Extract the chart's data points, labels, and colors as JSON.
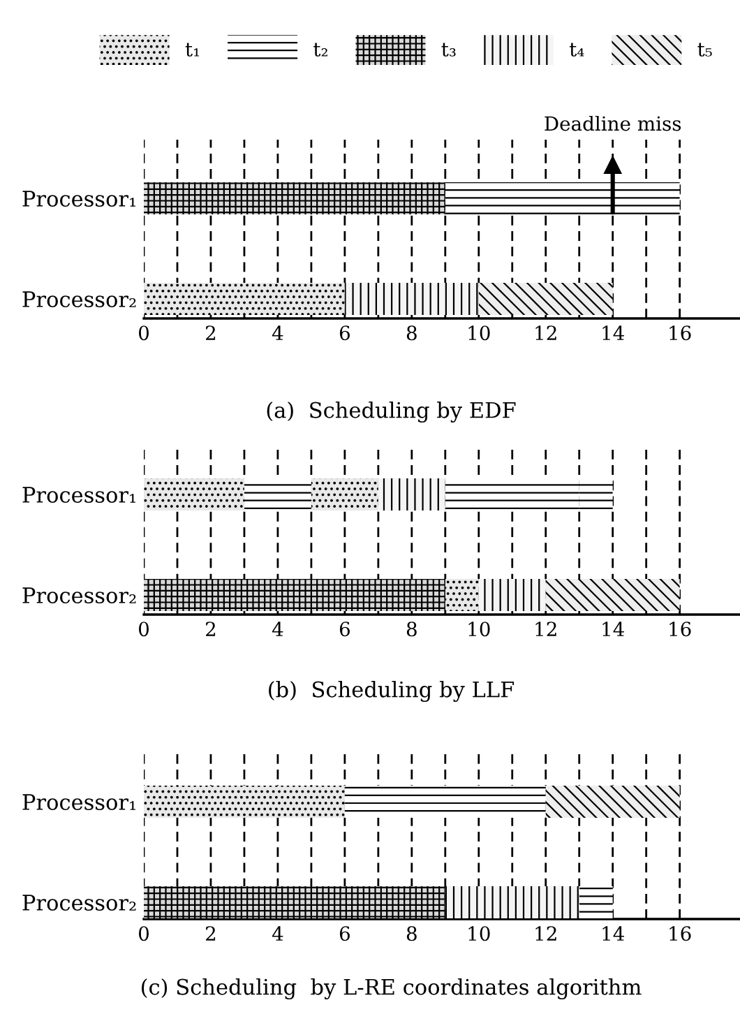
{
  "chart_data": [
    {
      "type": "bar",
      "orientation": "horizontal",
      "title": "(a)  Scheduling by EDF",
      "categories": [
        "Processor₁",
        "Processor₂"
      ],
      "xlim": [
        0,
        17.8
      ],
      "xticks": [
        0,
        {
          "value": 1,
          "label": null
        },
        2,
        {
          "value": 3,
          "label": null
        },
        4,
        {
          "value": 5,
          "label": null
        },
        6,
        {
          "value": 7,
          "label": null
        },
        8,
        {
          "value": 9,
          "label": null
        },
        10,
        {
          "value": 11,
          "label": null
        },
        12,
        {
          "value": 13,
          "label": null
        },
        14,
        {
          "value": 15,
          "label": null
        },
        16
      ],
      "grid": "x",
      "legend": "top",
      "series": [
        {
          "name": "t₁",
          "color": "#e8e8e8",
          "values": [
            null,
            6
          ],
          "base": [
            null,
            0
          ]
        },
        {
          "name": "t₂",
          "color": "#ffffff",
          "values": [
            7,
            null
          ],
          "base": [
            9,
            null
          ]
        },
        {
          "name": "t₃",
          "color": "#d8d8d8",
          "values": [
            9,
            null
          ],
          "base": [
            0,
            null
          ]
        },
        {
          "name": "t₄",
          "color": "#f4f4f4",
          "values": [
            null,
            4
          ],
          "base": [
            null,
            6
          ]
        },
        {
          "name": "t₅",
          "color": "#eeeeee",
          "values": [
            null,
            4
          ],
          "base": [
            null,
            10
          ]
        }
      ],
      "ref_lines": [
        {
          "axis": "x",
          "value": 14,
          "label": "Deadline miss"
        }
      ]
    },
    {
      "type": "bar",
      "orientation": "horizontal",
      "title": "(b)  Scheduling by LLF",
      "categories": [
        "Processor₁",
        "Processor₂"
      ],
      "xlim": [
        0,
        17.8
      ],
      "xticks": [
        0,
        {
          "value": 1,
          "label": null
        },
        2,
        {
          "value": 3,
          "label": null
        },
        4,
        {
          "value": 5,
          "label": null
        },
        6,
        {
          "value": 7,
          "label": null
        },
        8,
        {
          "value": 9,
          "label": null
        },
        10,
        {
          "value": 11,
          "label": null
        },
        12,
        {
          "value": 13,
          "label": null
        },
        14,
        {
          "value": 15,
          "label": null
        },
        16
      ],
      "grid": "x",
      "series": [
        {
          "color": "#e8e8e8",
          "values": [
            3,
            1
          ],
          "base": [
            0,
            9
          ]
        },
        {
          "color": "#e8e8e8",
          "values": [
            2,
            null
          ],
          "base": [
            5,
            null
          ]
        },
        {
          "color": "#ffffff",
          "values": [
            2,
            null
          ],
          "base": [
            3,
            null
          ]
        },
        {
          "color": "#ffffff",
          "values": [
            4,
            null
          ],
          "base": [
            9,
            null
          ]
        },
        {
          "color": "#ffffff",
          "values": [
            1,
            null
          ],
          "base": [
            13,
            null
          ]
        },
        {
          "color": "#d8d8d8",
          "values": [
            null,
            9
          ],
          "base": [
            null,
            0
          ]
        },
        {
          "color": "#f4f4f4",
          "values": [
            2,
            2
          ],
          "base": [
            7,
            10
          ]
        },
        {
          "color": "#eeeeee",
          "values": [
            null,
            4
          ],
          "base": [
            null,
            12
          ]
        }
      ]
    },
    {
      "type": "bar",
      "orientation": "horizontal",
      "title": "(c) Scheduling  by L-RE coordinates algorithm",
      "categories": [
        "Processor₁",
        "Processor₂"
      ],
      "xlim": [
        0,
        17.8
      ],
      "xticks": [
        0,
        {
          "value": 1,
          "label": null
        },
        2,
        {
          "value": 3,
          "label": null
        },
        4,
        {
          "value": 5,
          "label": null
        },
        6,
        {
          "value": 7,
          "label": null
        },
        8,
        {
          "value": 9,
          "label": null
        },
        10,
        {
          "value": 11,
          "label": null
        },
        12,
        {
          "value": 13,
          "label": null
        },
        14,
        {
          "value": 15,
          "label": null
        },
        16
      ],
      "grid": "x",
      "series": [
        {
          "color": "#e8e8e8",
          "values": [
            6,
            null
          ],
          "base": [
            0,
            null
          ]
        },
        {
          "color": "#ffffff",
          "values": [
            6,
            1
          ],
          "base": [
            6,
            13
          ]
        },
        {
          "color": "#d8d8d8",
          "values": [
            null,
            9
          ],
          "base": [
            null,
            0
          ]
        },
        {
          "color": "#f4f4f4",
          "values": [
            null,
            4
          ],
          "base": [
            null,
            9
          ]
        },
        {
          "color": "#eeeeee",
          "values": [
            4,
            null
          ],
          "base": [
            12,
            null
          ]
        }
      ]
    }
  ]
}
